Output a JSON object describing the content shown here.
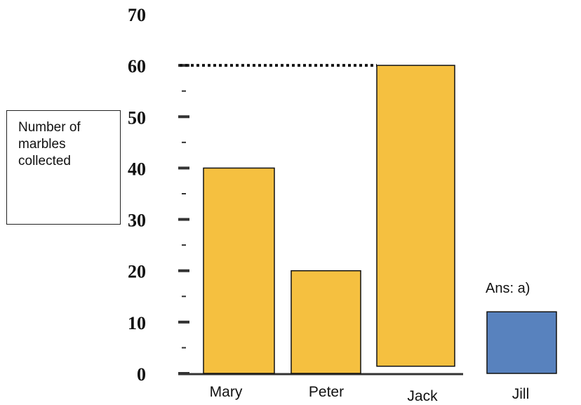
{
  "chart_data": {
    "type": "bar",
    "title": "",
    "ylabel": "Number of marbles collected",
    "xlabel": "",
    "ylim": [
      0,
      70
    ],
    "yticks": [
      0,
      10,
      20,
      30,
      40,
      50,
      60,
      70
    ],
    "categories": [
      "Mary",
      "Peter",
      "Jack",
      "Jill"
    ],
    "values": [
      40,
      20,
      60,
      12
    ],
    "bar_colors": [
      "#F5C040",
      "#F5C040",
      "#F5C040",
      "#5882BE"
    ],
    "reference_line": {
      "value": 60,
      "style": "dotted"
    },
    "annotation": {
      "text": "Ans: a)",
      "category": "Jill"
    },
    "grid": false
  }
}
